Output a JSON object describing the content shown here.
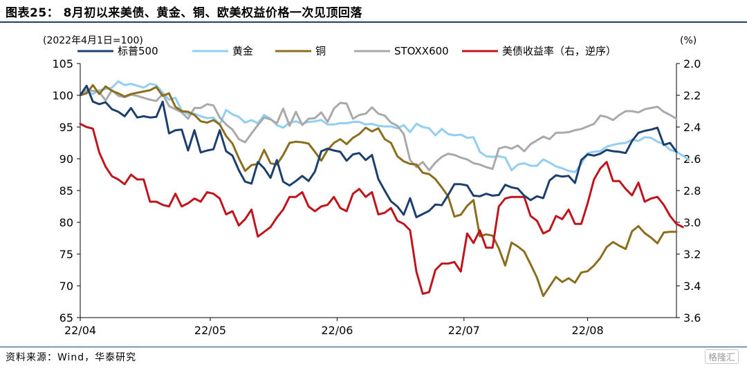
{
  "header": {
    "title": "图表25：  8月初以来美债、黄金、铜、欧美权益价格一次见顶回落",
    "source": "资料来源：Wind，华泰研究",
    "watermark": "格隆汇"
  },
  "chart_data": {
    "type": "line",
    "left_axis_note": "(2022年4月1日=100)",
    "right_axis_note": "(%)",
    "x_tick_labels": [
      "22/04",
      "22/05",
      "22/06",
      "22/07",
      "22/08"
    ],
    "x_ticks": [
      0,
      20.5,
      40.5,
      60.5,
      80
    ],
    "x_range": [
      0,
      94
    ],
    "ylim_left": [
      65,
      105
    ],
    "yticks_left": [
      65,
      70,
      75,
      80,
      85,
      90,
      95,
      100,
      105
    ],
    "ylim_right_inverted": [
      3.6,
      2.0
    ],
    "yticks_right": [
      "2.0",
      "2.2",
      "2.4",
      "2.6",
      "2.8",
      "3.0",
      "3.2",
      "3.4",
      "3.6"
    ],
    "series": [
      {
        "name": "标普500",
        "axis": "left",
        "color": "#1c3f6e",
        "values": [
          100,
          101.5,
          99,
          98.6,
          98.9,
          97.8,
          97.4,
          96.7,
          98,
          96.5,
          96.7,
          96.5,
          96.6,
          99,
          94,
          94.5,
          94.6,
          91.3,
          94.5,
          91,
          91.3,
          91.5,
          94.5,
          91.2,
          90.5,
          88.2,
          86.4,
          86.1,
          89.5,
          88.5,
          87,
          89.8,
          86.4,
          85.8,
          86.5,
          87.3,
          86.5,
          88,
          91.2,
          91.6,
          91.3,
          91.1,
          89.7,
          90.7,
          90.9,
          89.8,
          90.6,
          86.8,
          85,
          83.3,
          82.5,
          81.2,
          83.8,
          80.8,
          81.3,
          81.8,
          82.8,
          82.7,
          84.3,
          86,
          86,
          85.8,
          84.2,
          84.1,
          84.5,
          84.2,
          84.3,
          85.9,
          85.5,
          85.3,
          84.2,
          83.5,
          84.1,
          83.8,
          86.6,
          87.4,
          87.2,
          87.3,
          86.2,
          89.8,
          90.7,
          90.5,
          90.8,
          91.4,
          91.2,
          91.1,
          90.9,
          92.8,
          94.1,
          94.4,
          94.6,
          94.9,
          92.2,
          92.5,
          91.1
        ]
      },
      {
        "name": "黄金",
        "axis": "left",
        "color": "#92cdf2",
        "values": [
          100,
          100.6,
          100.2,
          100.8,
          101,
          101.2,
          102.2,
          101.6,
          101.8,
          101.5,
          101.2,
          101.8,
          101.6,
          100.4,
          99.3,
          99.6,
          97.6,
          97,
          97.1,
          96.7,
          96.4,
          96.5,
          95.4,
          97.7,
          97,
          96.6,
          95.7,
          96.1,
          95.6,
          96.9,
          96.3,
          95.3,
          94.9,
          95.7,
          95.9,
          95.5,
          95.8,
          95.9,
          96.1,
          95.4,
          95.4,
          95.6,
          95.6,
          95.8,
          95.8,
          95.4,
          95.5,
          95.2,
          95.1,
          95.1,
          94.8,
          95.3,
          94.2,
          95.5,
          95,
          94.8,
          93.7,
          94.7,
          93.9,
          93.7,
          93.8,
          93.3,
          93.4,
          91.1,
          90.4,
          90.3,
          90.4,
          90.2,
          88.2,
          89.1,
          89.3,
          88.9,
          88.9,
          89.9,
          89.4,
          88.8,
          88.5,
          88.1,
          87.9,
          89.2,
          90.9,
          91.1,
          91.2,
          91.9,
          92.2,
          92.4,
          92.5,
          93,
          92.8,
          93.4,
          93.3,
          92.7,
          92.3,
          91.4,
          91.1,
          90.5,
          89.8
        ]
      },
      {
        "name": "铜",
        "axis": "left",
        "color": "#8a6e1e",
        "values": [
          100,
          100.3,
          101.6,
          100.2,
          101.4,
          100.7,
          100.3,
          99.8,
          100.2,
          100.4,
          100.6,
          100.8,
          101.3,
          99.9,
          100.3,
          98.2,
          97.5,
          97.4,
          96.9,
          95.9,
          95.7,
          96.1,
          95.4,
          93.6,
          92.4,
          90.1,
          88.1,
          89,
          89.2,
          91.4,
          89.3,
          89.1,
          90.6,
          92.5,
          92.7,
          92.6,
          92.4,
          91.1,
          89.7,
          91.4,
          92.5,
          93.1,
          92.3,
          93.3,
          93.9,
          94.9,
          94.3,
          94.8,
          93.1,
          92.5,
          90.4,
          89.6,
          89.2,
          89.1,
          87.8,
          87.6,
          86.8,
          85.5,
          84.1,
          80.9,
          81.2,
          82.6,
          83.5,
          77.8,
          78.1,
          77.9,
          75.9,
          73.2,
          76.8,
          76.2,
          75.4,
          73.4,
          71.3,
          68.4,
          69.9,
          71.4,
          70.6,
          71.2,
          70.5,
          72.1,
          72.3,
          73.2,
          74.4,
          76.1,
          76.9,
          76.3,
          75.8,
          78.6,
          79.4,
          78.3,
          77.6,
          76.7,
          78.4,
          78.5,
          78.5
        ]
      },
      {
        "name": "STOXX600",
        "axis": "left",
        "color": "#a9a9a9",
        "values": [
          100,
          100.8,
          100.7,
          100.5,
          99.2,
          100.8,
          99.9,
          99.7,
          100.1,
          99.9,
          99.6,
          99.3,
          99.1,
          100.2,
          98.3,
          97.8,
          97.3,
          96.3,
          98,
          98,
          98.6,
          98.4,
          96.5,
          95.4,
          94.6,
          93.1,
          92.6,
          94,
          95.3,
          96.5,
          96.2,
          95.6,
          97.9,
          95.2,
          97.4,
          95.3,
          96.3,
          96.4,
          97.3,
          95.8,
          97.9,
          98.8,
          98.7,
          96.3,
          96.9,
          97.1,
          98.1,
          97.1,
          96.8,
          95.7,
          95.2,
          93.9,
          89.8,
          88.7,
          89.5,
          88.2,
          89.4,
          90.3,
          90.8,
          90.6,
          90.2,
          89.9,
          89.3,
          89.1,
          88.7,
          88.4,
          91.6,
          91.9,
          91.6,
          92.1,
          91.2,
          92.3,
          92.9,
          93.5,
          93.1,
          94.1,
          94.1,
          94.2,
          94.5,
          94.7,
          95.1,
          95.5,
          96.8,
          96.6,
          96.1,
          96.9,
          97.5,
          97.5,
          97.3,
          97.8,
          98,
          98.2,
          97.4,
          96.9,
          96.3
        ]
      },
      {
        "name": "美债收益率（右，逆序）",
        "axis": "right",
        "color": "#c0141c",
        "values": [
          2.38,
          2.4,
          2.41,
          2.56,
          2.65,
          2.71,
          2.73,
          2.76,
          2.7,
          2.73,
          2.73,
          2.87,
          2.87,
          2.89,
          2.9,
          2.82,
          2.9,
          2.88,
          2.85,
          2.87,
          2.81,
          2.82,
          2.85,
          2.95,
          2.93,
          3.02,
          2.98,
          2.92,
          3.09,
          3.06,
          3.03,
          2.97,
          2.92,
          2.84,
          2.84,
          2.81,
          2.9,
          2.93,
          2.9,
          2.89,
          2.84,
          2.91,
          2.93,
          2.82,
          2.79,
          2.84,
          2.81,
          2.95,
          2.94,
          2.91,
          2.99,
          3.01,
          3.05,
          3.31,
          3.45,
          3.44,
          3.3,
          3.26,
          3.26,
          3.25,
          3.31,
          3.07,
          3.13,
          3.05,
          3.16,
          3.16,
          2.9,
          2.85,
          2.84,
          2.84,
          2.84,
          2.96,
          2.99,
          3.07,
          3.05,
          2.96,
          2.98,
          2.92,
          3.01,
          3.01,
          2.88,
          2.73,
          2.66,
          2.62,
          2.74,
          2.74,
          2.79,
          2.83,
          2.75,
          2.87,
          2.85,
          2.84,
          2.89,
          2.96,
          3.01,
          3.03
        ]
      }
    ]
  }
}
